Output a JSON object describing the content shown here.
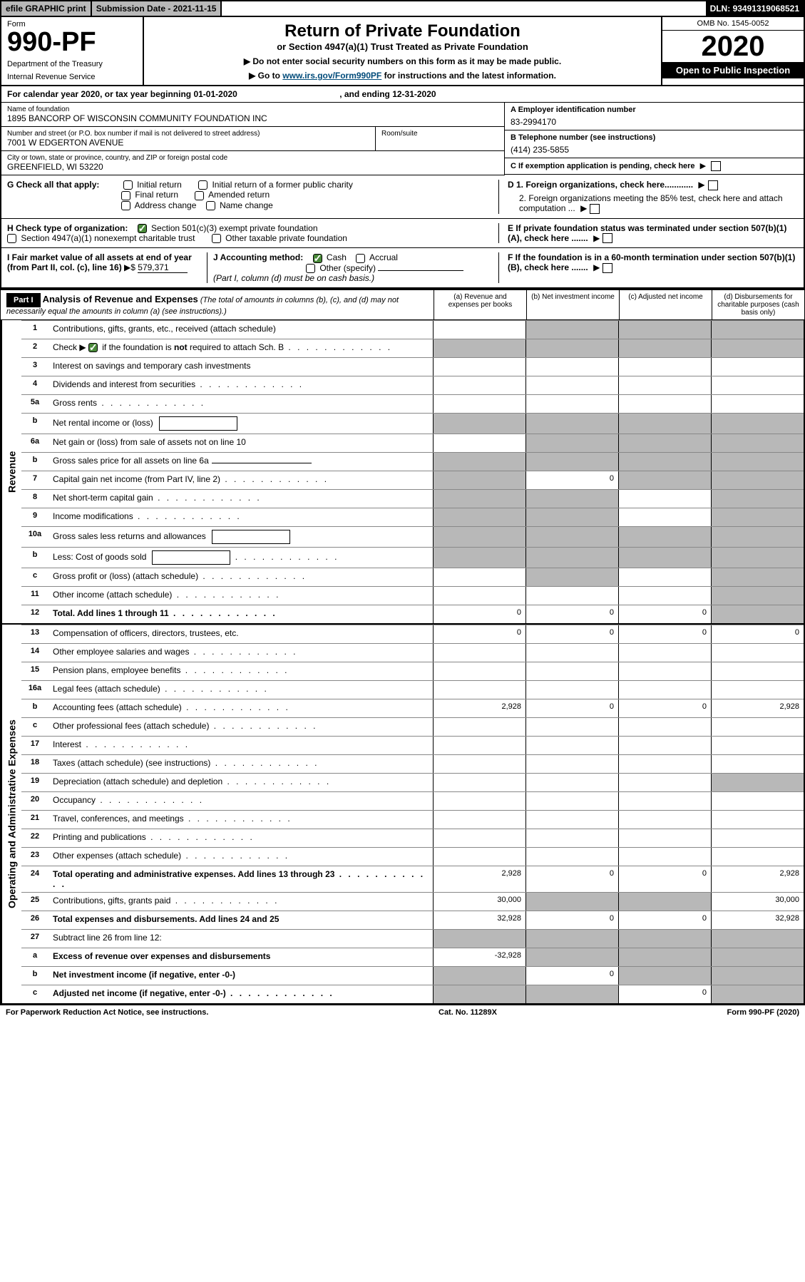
{
  "topbar": {
    "efile": "efile GRAPHIC print",
    "subdate_label": "Submission Date - ",
    "subdate": "2021-11-15",
    "dln_label": "DLN: ",
    "dln": "93491319068521"
  },
  "header": {
    "form_label": "Form",
    "form_number": "990-PF",
    "dept1": "Department of the Treasury",
    "dept2": "Internal Revenue Service",
    "title": "Return of Private Foundation",
    "subtitle": "or Section 4947(a)(1) Trust Treated as Private Foundation",
    "instruct1": "▶ Do not enter social security numbers on this form as it may be made public.",
    "instruct2_pre": "▶ Go to ",
    "instruct2_link": "www.irs.gov/Form990PF",
    "instruct2_post": " for instructions and the latest information.",
    "omb": "OMB No. 1545-0052",
    "year": "2020",
    "inspect": "Open to Public Inspection"
  },
  "cal": {
    "text_pre": "For calendar year 2020, or tax year beginning ",
    "begin": "01-01-2020",
    "text_mid": " , and ending ",
    "end": "12-31-2020"
  },
  "info": {
    "name_label": "Name of foundation",
    "name": "1895 BANCORP OF WISCONSIN COMMUNITY FOUNDATION INC",
    "addr_label": "Number and street (or P.O. box number if mail is not delivered to street address)",
    "addr": "7001 W EDGERTON AVENUE",
    "room_label": "Room/suite",
    "city_label": "City or town, state or province, country, and ZIP or foreign postal code",
    "city": "GREENFIELD, WI  53220",
    "ein_label": "A Employer identification number",
    "ein": "83-2994170",
    "phone_label": "B Telephone number (see instructions)",
    "phone": "(414) 235-5855",
    "c_label": "C If exemption application is pending, check here",
    "d1": "D 1. Foreign organizations, check here............",
    "d2": "2. Foreign organizations meeting the 85% test, check here and attach computation ...",
    "e": "E  If private foundation status was terminated under section 507(b)(1)(A), check here .......",
    "f": "F  If the foundation is in a 60-month termination under section 507(b)(1)(B), check here .......",
    "g_label": "G Check all that apply:",
    "g_opts": [
      "Initial return",
      "Initial return of a former public charity",
      "Final return",
      "Amended return",
      "Address change",
      "Name change"
    ],
    "h_label": "H Check type of organization:",
    "h_opts": [
      "Section 501(c)(3) exempt private foundation",
      "Section 4947(a)(1) nonexempt charitable trust",
      "Other taxable private foundation"
    ],
    "i_label": "I Fair market value of all assets at end of year (from Part II, col. (c), line 16)",
    "i_val": "579,371",
    "j_label": "J Accounting method:",
    "j_opts": [
      "Cash",
      "Accrual",
      "Other (specify)"
    ],
    "j_note": "(Part I, column (d) must be on cash basis.)"
  },
  "part1": {
    "label": "Part I",
    "title": "Analysis of Revenue and Expenses",
    "note": "(The total of amounts in columns (b), (c), and (d) may not necessarily equal the amounts in column (a) (see instructions).)",
    "cols": {
      "a": "(a) Revenue and expenses per books",
      "b": "(b) Net investment income",
      "c": "(c) Adjusted net income",
      "d": "(d) Disbursements for charitable purposes (cash basis only)"
    }
  },
  "sections": {
    "revenue": "Revenue",
    "opex": "Operating and Administrative Expenses"
  },
  "lines": [
    {
      "n": "1",
      "d": "Contributions, gifts, grants, etc., received (attach schedule)",
      "shade_bcd": true
    },
    {
      "n": "2",
      "d": "Check ▶ ☑ if the foundation is not required to attach Sch. B",
      "dots": true,
      "shade_all": true,
      "has_check": true
    },
    {
      "n": "3",
      "d": "Interest on savings and temporary cash investments"
    },
    {
      "n": "4",
      "d": "Dividends and interest from securities",
      "dots": true
    },
    {
      "n": "5a",
      "d": "Gross rents",
      "dots": true
    },
    {
      "n": "b",
      "d": "Net rental income or (loss)",
      "inline_box": true,
      "shade_all": true
    },
    {
      "n": "6a",
      "d": "Net gain or (loss) from sale of assets not on line 10",
      "shade_bcd": true
    },
    {
      "n": "b",
      "d": "Gross sales price for all assets on line 6a",
      "inline_line": true,
      "shade_all": true
    },
    {
      "n": "7",
      "d": "Capital gain net income (from Part IV, line 2)",
      "dots": true,
      "shade_a": true,
      "b": "0",
      "shade_cd": true
    },
    {
      "n": "8",
      "d": "Net short-term capital gain",
      "dots": true,
      "shade_ab": true,
      "shade_d": true
    },
    {
      "n": "9",
      "d": "Income modifications",
      "dots": true,
      "shade_ab": true,
      "shade_d": true
    },
    {
      "n": "10a",
      "d": "Gross sales less returns and allowances",
      "inline_box": true,
      "shade_all": true
    },
    {
      "n": "b",
      "d": "Less: Cost of goods sold",
      "dots": true,
      "inline_box": true,
      "shade_all": true
    },
    {
      "n": "c",
      "d": "Gross profit or (loss) (attach schedule)",
      "dots": true,
      "shade_b": true,
      "shade_d": true
    },
    {
      "n": "11",
      "d": "Other income (attach schedule)",
      "dots": true,
      "shade_d": true
    },
    {
      "n": "12",
      "d": "Total. Add lines 1 through 11",
      "dots": true,
      "bold": true,
      "a": "0",
      "b": "0",
      "c": "0",
      "shade_d": true
    }
  ],
  "oplines": [
    {
      "n": "13",
      "d": "Compensation of officers, directors, trustees, etc.",
      "a": "0",
      "b": "0",
      "c": "0",
      "dv": "0"
    },
    {
      "n": "14",
      "d": "Other employee salaries and wages",
      "dots": true
    },
    {
      "n": "15",
      "d": "Pension plans, employee benefits",
      "dots": true
    },
    {
      "n": "16a",
      "d": "Legal fees (attach schedule)",
      "dots": true
    },
    {
      "n": "b",
      "d": "Accounting fees (attach schedule)",
      "dots": true,
      "a": "2,928",
      "b": "0",
      "c": "0",
      "dv": "2,928"
    },
    {
      "n": "c",
      "d": "Other professional fees (attach schedule)",
      "dots": true
    },
    {
      "n": "17",
      "d": "Interest",
      "dots": true
    },
    {
      "n": "18",
      "d": "Taxes (attach schedule) (see instructions)",
      "dots": true
    },
    {
      "n": "19",
      "d": "Depreciation (attach schedule) and depletion",
      "dots": true,
      "shade_d": true
    },
    {
      "n": "20",
      "d": "Occupancy",
      "dots": true
    },
    {
      "n": "21",
      "d": "Travel, conferences, and meetings",
      "dots": true
    },
    {
      "n": "22",
      "d": "Printing and publications",
      "dots": true
    },
    {
      "n": "23",
      "d": "Other expenses (attach schedule)",
      "dots": true
    },
    {
      "n": "24",
      "d": "Total operating and administrative expenses. Add lines 13 through 23",
      "dots": true,
      "bold": true,
      "a": "2,928",
      "b": "0",
      "c": "0",
      "dv": "2,928"
    },
    {
      "n": "25",
      "d": "Contributions, gifts, grants paid",
      "dots": true,
      "a": "30,000",
      "shade_bc": true,
      "dv": "30,000"
    },
    {
      "n": "26",
      "d": "Total expenses and disbursements. Add lines 24 and 25",
      "bold": true,
      "a": "32,928",
      "b": "0",
      "c": "0",
      "dv": "32,928"
    },
    {
      "n": "27",
      "d": "Subtract line 26 from line 12:",
      "shade_all": true
    },
    {
      "n": "a",
      "d": "Excess of revenue over expenses and disbursements",
      "bold": true,
      "a": "-32,928",
      "shade_bcd": true
    },
    {
      "n": "b",
      "d": "Net investment income (if negative, enter -0-)",
      "bold": true,
      "shade_a": true,
      "b": "0",
      "shade_cd": true
    },
    {
      "n": "c",
      "d": "Adjusted net income (if negative, enter -0-)",
      "bold": true,
      "dots": true,
      "shade_ab": true,
      "c": "0",
      "shade_d": true
    }
  ],
  "footer": {
    "left": "For Paperwork Reduction Act Notice, see instructions.",
    "mid": "Cat. No. 11289X",
    "right": "Form 990-PF (2020)"
  }
}
